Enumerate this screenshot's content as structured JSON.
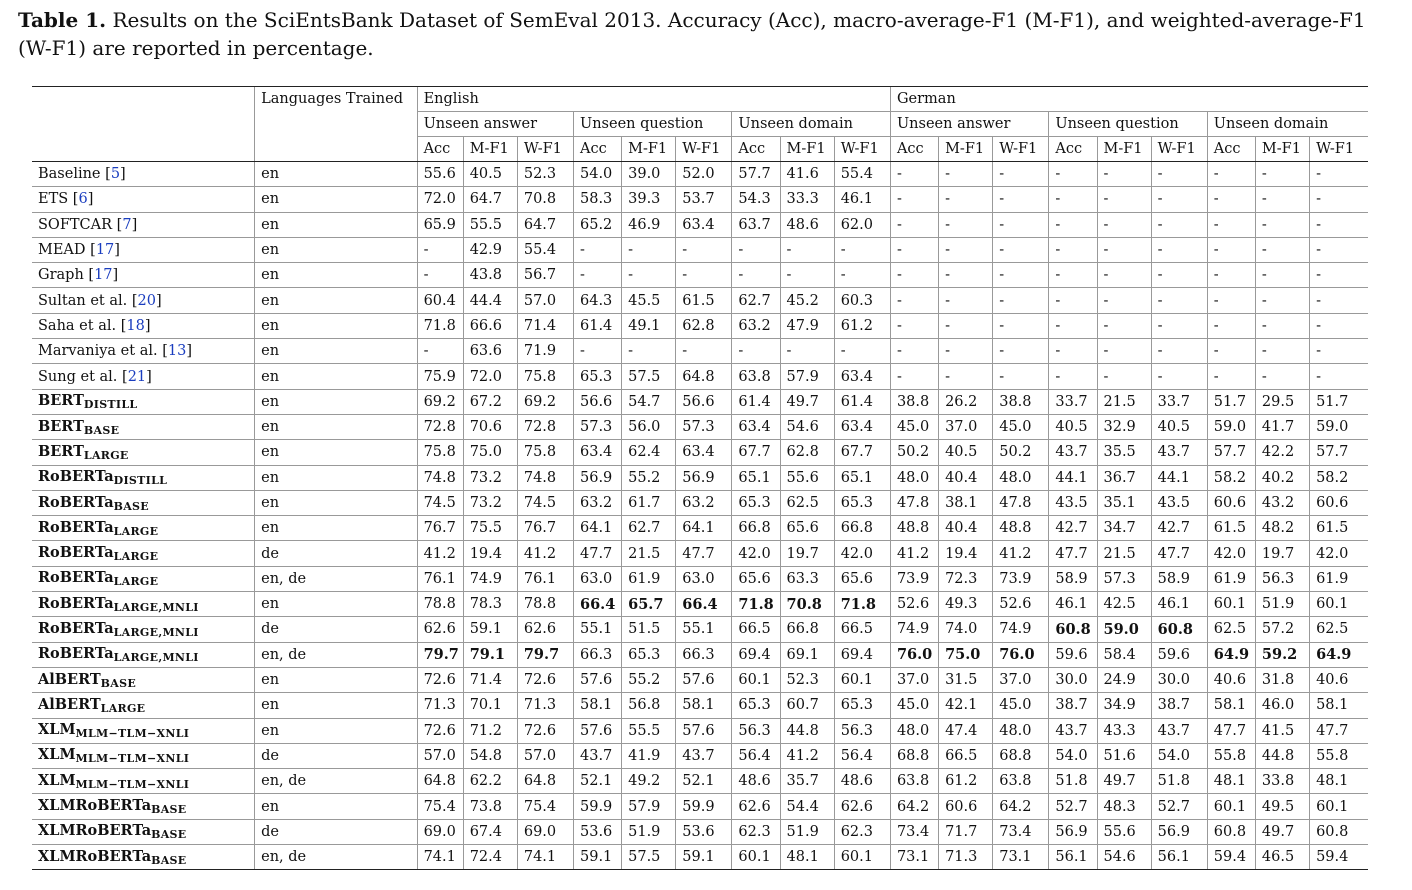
{
  "caption": {
    "label": "Table 1.",
    "text": "Results on the SciEntsBank Dataset of SemEval 2013. Accuracy (Acc), macro-average-F1 (M-F1), and weighted-average-F1 (W-F1) are reported in percentage."
  },
  "header": {
    "languages_trained": "Languages Trained",
    "languages": [
      "English",
      "German"
    ],
    "scenarios": [
      "Unseen answer",
      "Unseen question",
      "Unseen domain"
    ],
    "metrics": [
      "Acc",
      "M-F1",
      "W-F1"
    ]
  },
  "rows": [
    {
      "model": "Baseline",
      "ref": "5",
      "bold": false,
      "lang": "en",
      "vals": [
        "55.6",
        "40.5",
        "52.3",
        "54.0",
        "39.0",
        "52.0",
        "57.7",
        "41.6",
        "55.4",
        "-",
        "-",
        "-",
        "-",
        "-",
        "-",
        "-",
        "-",
        "-"
      ]
    },
    {
      "model": "ETS",
      "ref": "6",
      "bold": false,
      "lang": "en",
      "vals": [
        "72.0",
        "64.7",
        "70.8",
        "58.3",
        "39.3",
        "53.7",
        "54.3",
        "33.3",
        "46.1",
        "-",
        "-",
        "-",
        "-",
        "-",
        "-",
        "-",
        "-",
        "-"
      ]
    },
    {
      "model": "SOFTCAR",
      "ref": "7",
      "bold": false,
      "lang": "en",
      "vals": [
        "65.9",
        "55.5",
        "64.7",
        "65.2",
        "46.9",
        "63.4",
        "63.7",
        "48.6",
        "62.0",
        "-",
        "-",
        "-",
        "-",
        "-",
        "-",
        "-",
        "-",
        "-"
      ]
    },
    {
      "model": "MEAD",
      "ref": "17",
      "bold": false,
      "lang": "en",
      "vals": [
        "-",
        "42.9",
        "55.4",
        "-",
        "-",
        "-",
        "-",
        "-",
        "-",
        "-",
        "-",
        "-",
        "-",
        "-",
        "-",
        "-",
        "-",
        "-"
      ]
    },
    {
      "model": "Graph",
      "ref": "17",
      "bold": false,
      "lang": "en",
      "vals": [
        "-",
        "43.8",
        "56.7",
        "-",
        "-",
        "-",
        "-",
        "-",
        "-",
        "-",
        "-",
        "-",
        "-",
        "-",
        "-",
        "-",
        "-",
        "-"
      ]
    },
    {
      "model": "Sultan et al.",
      "ref": "20",
      "bold": false,
      "lang": "en",
      "vals": [
        "60.4",
        "44.4",
        "57.0",
        "64.3",
        "45.5",
        "61.5",
        "62.7",
        "45.2",
        "60.3",
        "-",
        "-",
        "-",
        "-",
        "-",
        "-",
        "-",
        "-",
        "-"
      ]
    },
    {
      "model": "Saha et al.",
      "ref": "18",
      "bold": false,
      "lang": "en",
      "vals": [
        "71.8",
        "66.6",
        "71.4",
        "61.4",
        "49.1",
        "62.8",
        "63.2",
        "47.9",
        "61.2",
        "-",
        "-",
        "-",
        "-",
        "-",
        "-",
        "-",
        "-",
        "-"
      ]
    },
    {
      "model": "Marvaniya et al.",
      "ref": "13",
      "bold": false,
      "lang": "en",
      "vals": [
        "-",
        "63.6",
        "71.9",
        "-",
        "-",
        "-",
        "-",
        "-",
        "-",
        "-",
        "-",
        "-",
        "-",
        "-",
        "-",
        "-",
        "-",
        "-"
      ]
    },
    {
      "model": "Sung et al.",
      "ref": "21",
      "bold": false,
      "lang": "en",
      "vals": [
        "75.9",
        "72.0",
        "75.8",
        "65.3",
        "57.5",
        "64.8",
        "63.8",
        "57.9",
        "63.4",
        "-",
        "-",
        "-",
        "-",
        "-",
        "-",
        "-",
        "-",
        "-"
      ]
    },
    {
      "model": "BERT",
      "sub": "DISTILL",
      "bold": true,
      "lang": "en",
      "vals": [
        "69.2",
        "67.2",
        "69.2",
        "56.6",
        "54.7",
        "56.6",
        "61.4",
        "49.7",
        "61.4",
        "38.8",
        "26.2",
        "38.8",
        "33.7",
        "21.5",
        "33.7",
        "51.7",
        "29.5",
        "51.7"
      ]
    },
    {
      "model": "BERT",
      "sub": "BASE",
      "bold": true,
      "lang": "en",
      "vals": [
        "72.8",
        "70.6",
        "72.8",
        "57.3",
        "56.0",
        "57.3",
        "63.4",
        "54.6",
        "63.4",
        "45.0",
        "37.0",
        "45.0",
        "40.5",
        "32.9",
        "40.5",
        "59.0",
        "41.7",
        "59.0"
      ]
    },
    {
      "model": "BERT",
      "sub": "LARGE",
      "bold": true,
      "lang": "en",
      "vals": [
        "75.8",
        "75.0",
        "75.8",
        "63.4",
        "62.4",
        "63.4",
        "67.7",
        "62.8",
        "67.7",
        "50.2",
        "40.5",
        "50.2",
        "43.7",
        "35.5",
        "43.7",
        "57.7",
        "42.2",
        "57.7"
      ]
    },
    {
      "model": "RoBERTa",
      "sub": "DISTILL",
      "bold": true,
      "lang": "en",
      "vals": [
        "74.8",
        "73.2",
        "74.8",
        "56.9",
        "55.2",
        "56.9",
        "65.1",
        "55.6",
        "65.1",
        "48.0",
        "40.4",
        "48.0",
        "44.1",
        "36.7",
        "44.1",
        "58.2",
        "40.2",
        "58.2"
      ]
    },
    {
      "model": "RoBERTa",
      "sub": "BASE",
      "bold": true,
      "lang": "en",
      "vals": [
        "74.5",
        "73.2",
        "74.5",
        "63.2",
        "61.7",
        "63.2",
        "65.3",
        "62.5",
        "65.3",
        "47.8",
        "38.1",
        "47.8",
        "43.5",
        "35.1",
        "43.5",
        "60.6",
        "43.2",
        "60.6"
      ]
    },
    {
      "model": "RoBERTa",
      "sub": "LARGE",
      "bold": true,
      "lang": "en",
      "vals": [
        "76.7",
        "75.5",
        "76.7",
        "64.1",
        "62.7",
        "64.1",
        "66.8",
        "65.6",
        "66.8",
        "48.8",
        "40.4",
        "48.8",
        "42.7",
        "34.7",
        "42.7",
        "61.5",
        "48.2",
        "61.5"
      ]
    },
    {
      "model": "RoBERTa",
      "sub": "LARGE",
      "bold": true,
      "lang": "de",
      "vals": [
        "41.2",
        "19.4",
        "41.2",
        "47.7",
        "21.5",
        "47.7",
        "42.0",
        "19.7",
        "42.0",
        "41.2",
        "19.4",
        "41.2",
        "47.7",
        "21.5",
        "47.7",
        "42.0",
        "19.7",
        "42.0"
      ]
    },
    {
      "model": "RoBERTa",
      "sub": "LARGE",
      "bold": true,
      "lang": "en, de",
      "vals": [
        "76.1",
        "74.9",
        "76.1",
        "63.0",
        "61.9",
        "63.0",
        "65.6",
        "63.3",
        "65.6",
        "73.9",
        "72.3",
        "73.9",
        "58.9",
        "57.3",
        "58.9",
        "61.9",
        "56.3",
        "61.9"
      ]
    },
    {
      "model": "RoBERTa",
      "sub": "LARGE,MNLI",
      "bold": true,
      "lang": "en",
      "vals": [
        "78.8",
        "78.3",
        "78.8",
        "66.4",
        "65.7",
        "66.4",
        "71.8",
        "70.8",
        "71.8",
        "52.6",
        "49.3",
        "52.6",
        "46.1",
        "42.5",
        "46.1",
        "60.1",
        "51.9",
        "60.1"
      ],
      "bold_idx": [
        3,
        4,
        5,
        6,
        7,
        8
      ]
    },
    {
      "model": "RoBERTa",
      "sub": "LARGE,MNLI",
      "bold": true,
      "lang": "de",
      "vals": [
        "62.6",
        "59.1",
        "62.6",
        "55.1",
        "51.5",
        "55.1",
        "66.5",
        "66.8",
        "66.5",
        "74.9",
        "74.0",
        "74.9",
        "60.8",
        "59.0",
        "60.8",
        "62.5",
        "57.2",
        "62.5"
      ],
      "bold_idx": [
        12,
        13,
        14
      ]
    },
    {
      "model": "RoBERTa",
      "sub": "LARGE,MNLI",
      "bold": true,
      "lang": "en, de",
      "vals": [
        "79.7",
        "79.1",
        "79.7",
        "66.3",
        "65.3",
        "66.3",
        "69.4",
        "69.1",
        "69.4",
        "76.0",
        "75.0",
        "76.0",
        "59.6",
        "58.4",
        "59.6",
        "64.9",
        "59.2",
        "64.9"
      ],
      "bold_idx": [
        0,
        1,
        2,
        9,
        10,
        11,
        15,
        16,
        17
      ]
    },
    {
      "model": "AlBERT",
      "sub": "BASE",
      "bold": true,
      "lang": "en",
      "vals": [
        "72.6",
        "71.4",
        "72.6",
        "57.6",
        "55.2",
        "57.6",
        "60.1",
        "52.3",
        "60.1",
        "37.0",
        "31.5",
        "37.0",
        "30.0",
        "24.9",
        "30.0",
        "40.6",
        "31.8",
        "40.6"
      ]
    },
    {
      "model": "AlBERT",
      "sub": "LARGE",
      "bold": true,
      "lang": "en",
      "vals": [
        "71.3",
        "70.1",
        "71.3",
        "58.1",
        "56.8",
        "58.1",
        "65.3",
        "60.7",
        "65.3",
        "45.0",
        "42.1",
        "45.0",
        "38.7",
        "34.9",
        "38.7",
        "58.1",
        "46.0",
        "58.1"
      ]
    },
    {
      "model": "XLM",
      "sub": "MLM−TLM−XNLI",
      "bold": true,
      "lang": "en",
      "vals": [
        "72.6",
        "71.2",
        "72.6",
        "57.6",
        "55.5",
        "57.6",
        "56.3",
        "44.8",
        "56.3",
        "48.0",
        "47.4",
        "48.0",
        "43.7",
        "43.3",
        "43.7",
        "47.7",
        "41.5",
        "47.7"
      ]
    },
    {
      "model": "XLM",
      "sub": "MLM−TLM−XNLI",
      "bold": true,
      "lang": "de",
      "vals": [
        "57.0",
        "54.8",
        "57.0",
        "43.7",
        "41.9",
        "43.7",
        "56.4",
        "41.2",
        "56.4",
        "68.8",
        "66.5",
        "68.8",
        "54.0",
        "51.6",
        "54.0",
        "55.8",
        "44.8",
        "55.8"
      ]
    },
    {
      "model": "XLM",
      "sub": "MLM−TLM−XNLI",
      "bold": true,
      "lang": "en, de",
      "vals": [
        "64.8",
        "62.2",
        "64.8",
        "52.1",
        "49.2",
        "52.1",
        "48.6",
        "35.7",
        "48.6",
        "63.8",
        "61.2",
        "63.8",
        "51.8",
        "49.7",
        "51.8",
        "48.1",
        "33.8",
        "48.1"
      ]
    },
    {
      "model": "XLMRoBERTa",
      "sub": "BASE",
      "bold": true,
      "lang": "en",
      "vals": [
        "75.4",
        "73.8",
        "75.4",
        "59.9",
        "57.9",
        "59.9",
        "62.6",
        "54.4",
        "62.6",
        "64.2",
        "60.6",
        "64.2",
        "52.7",
        "48.3",
        "52.7",
        "60.1",
        "49.5",
        "60.1"
      ]
    },
    {
      "model": "XLMRoBERTa",
      "sub": "BASE",
      "bold": true,
      "lang": "de",
      "vals": [
        "69.0",
        "67.4",
        "69.0",
        "53.6",
        "51.9",
        "53.6",
        "62.3",
        "51.9",
        "62.3",
        "73.4",
        "71.7",
        "73.4",
        "56.9",
        "55.6",
        "56.9",
        "60.8",
        "49.7",
        "60.8"
      ]
    },
    {
      "model": "XLMRoBERTa",
      "sub": "BASE",
      "bold": true,
      "lang": "en, de",
      "vals": [
        "74.1",
        "72.4",
        "74.1",
        "59.1",
        "57.5",
        "59.1",
        "60.1",
        "48.1",
        "60.1",
        "73.1",
        "71.3",
        "73.1",
        "56.1",
        "54.6",
        "56.1",
        "59.4",
        "46.5",
        "59.4"
      ]
    }
  ]
}
